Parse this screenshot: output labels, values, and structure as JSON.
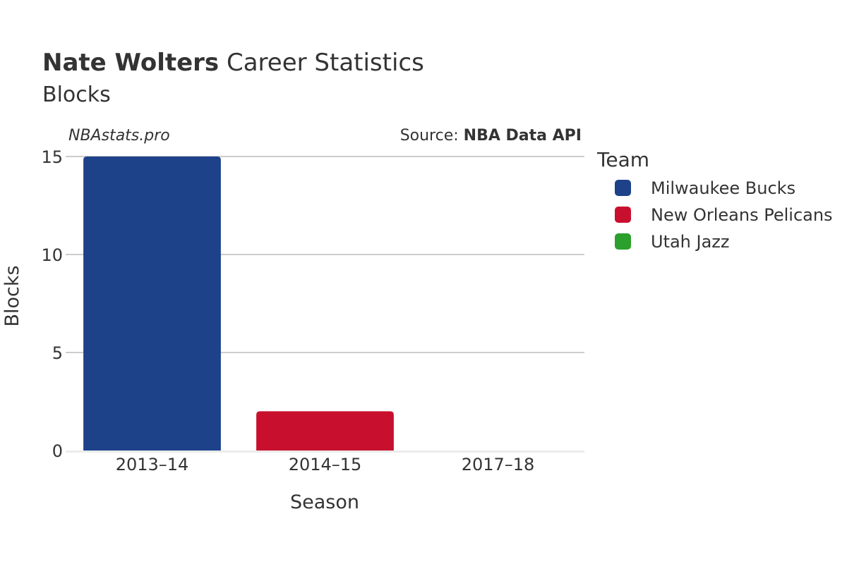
{
  "title": {
    "player": "Nate Wolters",
    "suffix": " Career Statistics",
    "subtitle": "Blocks"
  },
  "watermark": "NBAstats.pro",
  "source": {
    "prefix": "Source: ",
    "name": "NBA Data API"
  },
  "colors": {
    "Milwaukee Bucks": "#1d428a",
    "New Orleans Pelicans": "#c8102e",
    "Utah Jazz": "#2ca02c",
    "grid": "#999999",
    "text": "#333333"
  },
  "chart_data": {
    "type": "bar",
    "categories": [
      "2013–14",
      "2014–15",
      "2017–18"
    ],
    "series": [
      {
        "name": "Milwaukee Bucks",
        "values": [
          15,
          null,
          null
        ]
      },
      {
        "name": "New Orleans Pelicans",
        "values": [
          null,
          2,
          null
        ]
      },
      {
        "name": "Utah Jazz",
        "values": [
          null,
          null,
          0
        ]
      }
    ],
    "xlabel": "Season",
    "ylabel": "Blocks",
    "ylim": [
      0,
      15
    ],
    "yticks": [
      0,
      5,
      10,
      15
    ],
    "grid": true,
    "legend": {
      "title": "Team",
      "position": "right"
    }
  }
}
